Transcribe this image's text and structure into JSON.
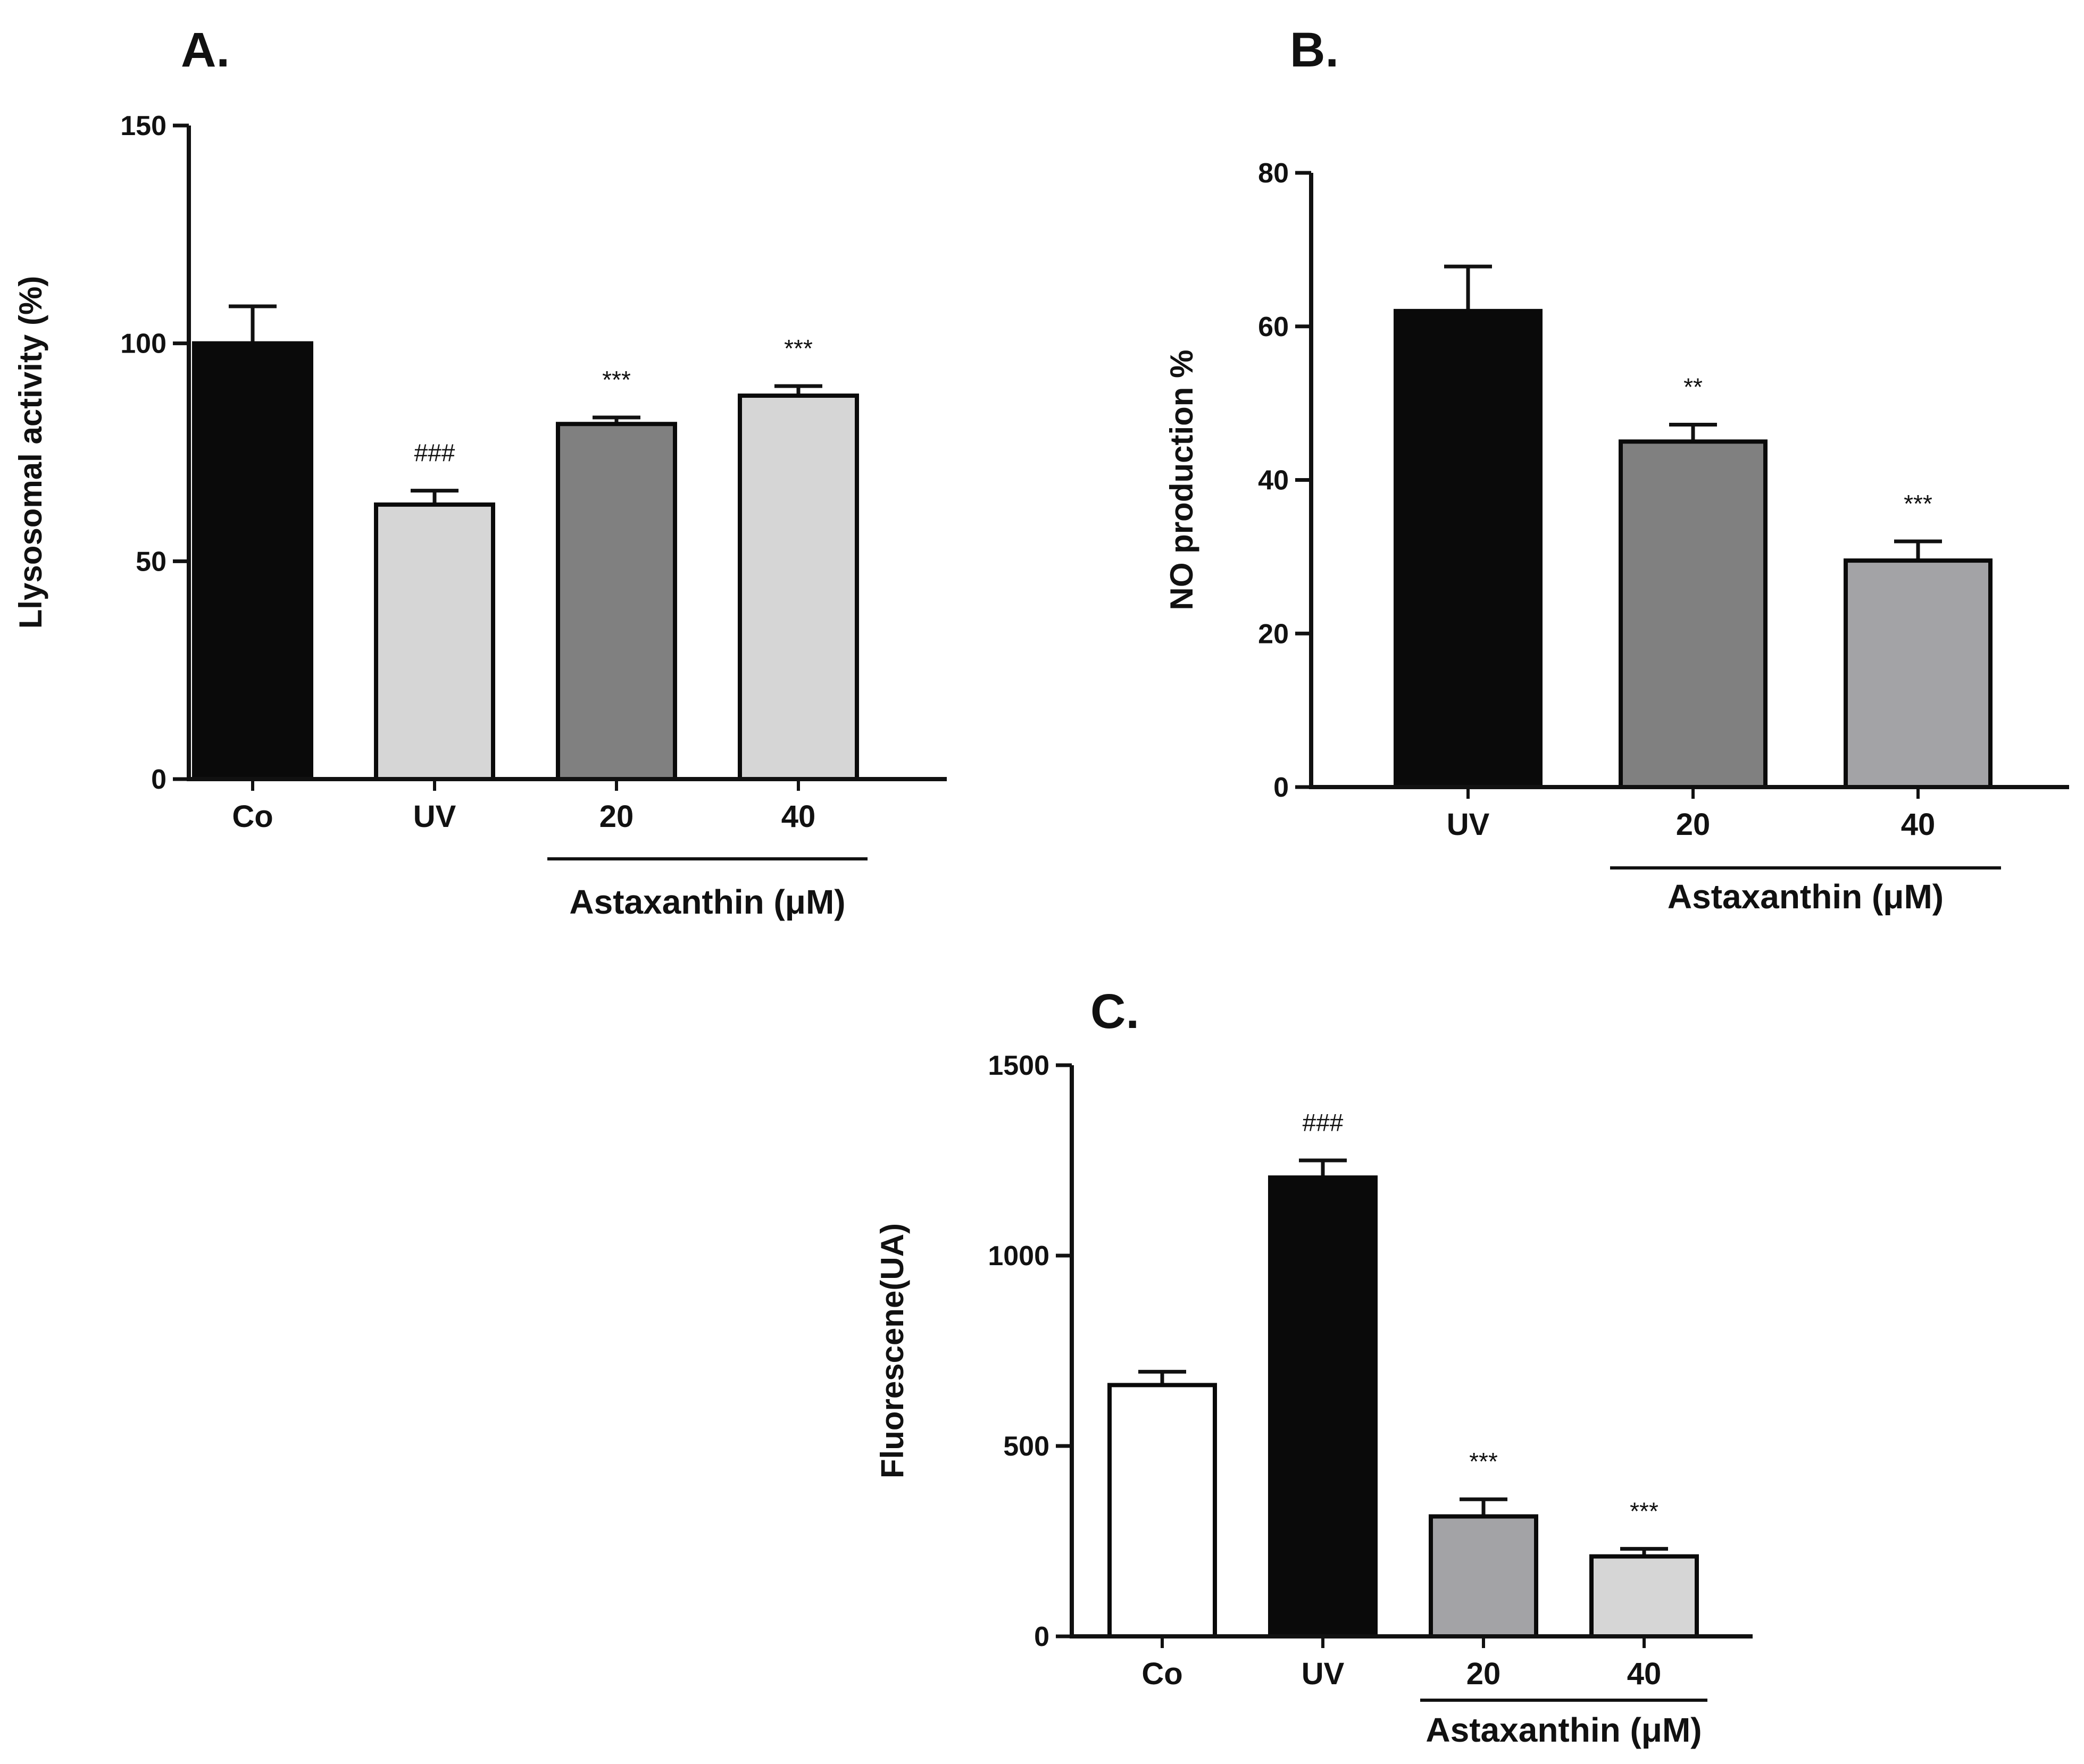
{
  "chart_data": [
    {
      "panel": "A.",
      "type": "bar",
      "ylabel": "Llysosomal activity  (%)",
      "xlabel": "",
      "ylim": [
        0,
        150
      ],
      "yticks": [
        0,
        50,
        100,
        150
      ],
      "grid": false,
      "categories": [
        "Co",
        "UV",
        "20",
        "40"
      ],
      "values": [
        100,
        63,
        81.5,
        88
      ],
      "errors": [
        8.5,
        3.2,
        1.5,
        2.2
      ],
      "colors": [
        "#0a0a0a",
        "#d6d6d6",
        "#808080",
        "#d6d6d6"
      ],
      "annotations": [
        "",
        "###",
        "***",
        "***"
      ],
      "group": {
        "label": "Astaxanthin (μM)",
        "from": 2,
        "to": 3
      }
    },
    {
      "panel": "B.",
      "type": "bar",
      "ylabel": "NO production %",
      "xlabel": "",
      "ylim": [
        0,
        80
      ],
      "yticks": [
        0,
        20,
        40,
        60,
        80
      ],
      "grid": false,
      "categories": [
        "UV",
        "20",
        "40"
      ],
      "values": [
        62,
        45,
        29.5
      ],
      "errors": [
        5.8,
        2.2,
        2.5
      ],
      "colors": [
        "#0a0a0a",
        "#808080",
        "#a3a3a6"
      ],
      "annotations": [
        "",
        "**",
        "***"
      ],
      "group": {
        "label": "Astaxanthin (μM)",
        "from": 1,
        "to": 2
      }
    },
    {
      "panel": "C.",
      "type": "bar",
      "ylabel": "Fluorescene(UA)",
      "xlabel": "",
      "ylim": [
        0,
        1500
      ],
      "yticks": [
        0,
        500,
        1000,
        1500
      ],
      "grid": false,
      "categories": [
        "Co",
        "UV",
        "20",
        "40"
      ],
      "values": [
        660,
        1205,
        315,
        210
      ],
      "errors": [
        35,
        45,
        45,
        20
      ],
      "colors": [
        "#ffffff",
        "#0a0a0a",
        "#a3a3a6",
        "#d6d6d6"
      ],
      "annotations": [
        "",
        "###",
        "***",
        "***"
      ],
      "group": {
        "label": "Astaxanthin (μM)",
        "from": 2,
        "to": 3
      }
    }
  ]
}
